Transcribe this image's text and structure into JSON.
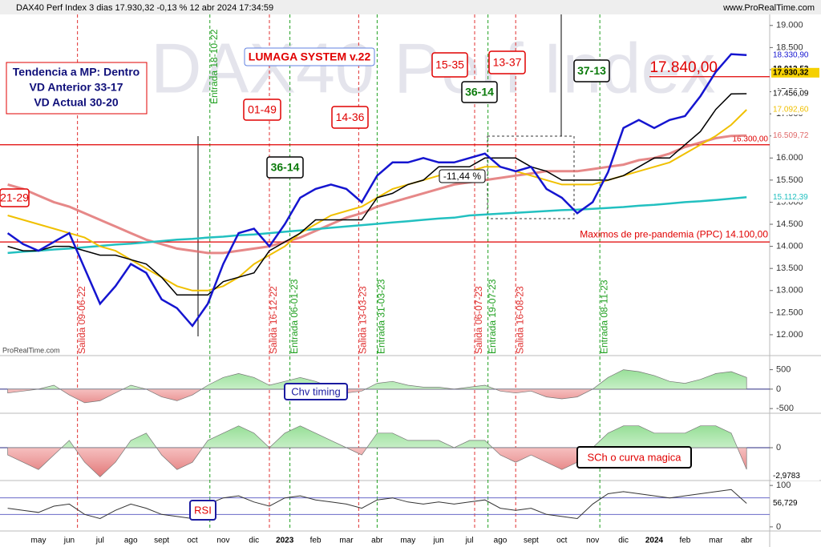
{
  "header": {
    "title": "DAX40 Perf Index 3 dias 17.930,32 -0,13 % 12 abr 2024 17:34:59",
    "site": "www.ProRealTime.com",
    "watermark": "DAX40 Perf Index",
    "credit": "ProRealTime.com"
  },
  "chart_data": [
    {
      "type": "line",
      "categories": [
        null,
        null,
        "may",
        null,
        "jun",
        null,
        "jul",
        null,
        "ago",
        null,
        "sept",
        null,
        "oct",
        null,
        "nov",
        null,
        "dic",
        null,
        "2023",
        null,
        "feb",
        null,
        "mar",
        null,
        "abr",
        null,
        "may",
        null,
        "jun",
        null,
        "jul",
        null,
        "ago",
        null,
        "sept",
        null,
        "oct",
        null,
        "nov",
        null,
        "dic",
        null,
        "2024",
        null,
        "feb",
        null,
        "mar",
        null,
        "abr",
        null
      ],
      "ylim": [
        11600,
        19250
      ],
      "yticks": [
        {
          "value": 19000,
          "label": "19.000"
        },
        {
          "value": 18500,
          "label": "18.500"
        },
        {
          "value": 18000,
          "label": "18.000"
        },
        {
          "value": 17500,
          "label": "17.500"
        },
        {
          "value": 17000,
          "label": "17.000"
        },
        {
          "value": 16500,
          "label": "16.500"
        },
        {
          "value": 16000,
          "label": "16.000"
        },
        {
          "value": 15500,
          "label": "15.500"
        },
        {
          "value": 15000,
          "label": "15.000"
        },
        {
          "value": 14500,
          "label": "14.500"
        },
        {
          "value": 14000,
          "label": "14.000"
        },
        {
          "value": 13500,
          "label": "13.500"
        },
        {
          "value": 13000,
          "label": "13.000"
        },
        {
          "value": 12500,
          "label": "12.500"
        },
        {
          "value": 12000,
          "label": "12.000"
        }
      ],
      "series": [
        {
          "color": "#e06a6a",
          "last_label": "16.509,72",
          "values": [
            15400,
            15300,
            15150,
            15000,
            14900,
            14750,
            14600,
            14450,
            14300,
            14150,
            14050,
            13950,
            13900,
            13850,
            13850,
            13900,
            13950,
            14000,
            14100,
            14200,
            14350,
            14500,
            14650,
            14750,
            14900,
            15000,
            15100,
            15200,
            15300,
            15400,
            15450,
            15500,
            15550,
            15600,
            15650,
            15700,
            15700,
            15700,
            15750,
            15800,
            15850,
            15950,
            16000,
            16100,
            16250,
            16350,
            16450,
            16500,
            16509.72,
            null
          ]
        },
        {
          "color": "#22c0c0",
          "last_label": "15.112,39",
          "values": [
            13850,
            13880,
            13900,
            13930,
            13950,
            13980,
            14010,
            14040,
            14060,
            14090,
            14120,
            14150,
            14170,
            14200,
            14220,
            14250,
            14270,
            14300,
            14330,
            14360,
            14390,
            14420,
            14450,
            14480,
            14510,
            14540,
            14570,
            14600,
            14630,
            14650,
            14700,
            14720,
            14740,
            14760,
            14780,
            14800,
            14820,
            14830,
            14850,
            14870,
            14890,
            14920,
            14940,
            14970,
            15000,
            15020,
            15050,
            15080,
            15112.39,
            null
          ]
        },
        {
          "color": "#f0c000",
          "last_label": "17.092,60",
          "values": [
            14700,
            14600,
            14500,
            14400,
            14300,
            14200,
            14000,
            13900,
            13700,
            13500,
            13300,
            13100,
            13000,
            13000,
            13100,
            13300,
            13600,
            13800,
            14000,
            14300,
            14500,
            14700,
            14800,
            14900,
            15100,
            15300,
            15400,
            15500,
            15600,
            15700,
            15700,
            15800,
            15800,
            15700,
            15600,
            15500,
            15400,
            15400,
            15400,
            15500,
            15600,
            15700,
            15800,
            15900,
            16100,
            16300,
            16500,
            16750,
            17092.6,
            null
          ]
        },
        {
          "color": "#000000",
          "last_label": "17.456,09",
          "values": [
            14000,
            13900,
            13900,
            14000,
            14000,
            13900,
            13800,
            13800,
            13700,
            13600,
            13300,
            12900,
            12900,
            12900,
            13200,
            13300,
            13400,
            13900,
            14100,
            14300,
            14600,
            14600,
            14600,
            14600,
            15100,
            15200,
            15400,
            15500,
            15800,
            15800,
            15800,
            16000,
            16000,
            16000,
            15800,
            15700,
            15500,
            15500,
            15500,
            15500,
            15600,
            15800,
            16000,
            16000,
            16300,
            16600,
            17100,
            17450,
            17456.09,
            null
          ]
        },
        {
          "color": "#1515d0",
          "last_label": "18.330,90",
          "values": [
            14300,
            14050,
            13900,
            14100,
            14300,
            13500,
            12700,
            13100,
            13600,
            13400,
            12800,
            12600,
            12200,
            12700,
            13600,
            14300,
            14400,
            14000,
            14500,
            15100,
            15300,
            15400,
            15300,
            15000,
            15600,
            15900,
            15900,
            16000,
            15900,
            15900,
            16000,
            16100,
            15800,
            15700,
            15800,
            15300,
            15100,
            14750,
            15000,
            15680,
            16680,
            16860,
            16680,
            16860,
            16950,
            17400,
            17950,
            18350,
            18330.9,
            null
          ]
        }
      ],
      "price_labels": [
        {
          "value": 18012.53,
          "label": "18.012,53",
          "color": "#000000"
        },
        {
          "value": 17930.32,
          "label": "17.930,32",
          "color": "#f5d000"
        }
      ],
      "hlines": [
        {
          "value": 16300,
          "label": "16.300,00",
          "color": "#e00000"
        },
        {
          "value": 14100,
          "label": "Maximos de pre-pandemia (PPC) 14.100,00",
          "color": "#e00000"
        },
        {
          "value": 17840,
          "label": "17.840,00",
          "color": "#e00000"
        }
      ],
      "annotations": [
        {
          "text": "Salida 09-06-22",
          "color": "#e03030"
        },
        {
          "text": "Entrada 18-10-22",
          "color": "#20a020"
        },
        {
          "text": "Salida 16-12-22",
          "color": "#e03030"
        },
        {
          "text": "Entrada 06-01-23",
          "color": "#20a020"
        },
        {
          "text": "Salida 13-03-23",
          "color": "#e03030"
        },
        {
          "text": "Entrada 31-03-23",
          "color": "#20a020"
        },
        {
          "text": "Salida 06-07-23",
          "color": "#e03030"
        },
        {
          "text": "Entrada 19-07-23",
          "color": "#20a020"
        },
        {
          "text": "Salida 16-08-23",
          "color": "#e03030"
        },
        {
          "text": "Entrada 08-11-23",
          "color": "#20a020"
        }
      ],
      "boxes": [
        {
          "text": "21-29",
          "color": "#e00000",
          "border": "#e00000"
        },
        {
          "text": "01-49",
          "color": "#e00000",
          "border": "#e00000"
        },
        {
          "text": "14-36",
          "color": "#e00000",
          "border": "#e00000"
        },
        {
          "text": "15-35",
          "color": "#e00000",
          "border": "#e00000"
        },
        {
          "text": "13-37",
          "color": "#e00000",
          "border": "#e00000"
        },
        {
          "text": "36-14",
          "color": "#0a7a0a",
          "border": "#000000"
        },
        {
          "text": "36-14",
          "color": "#0a7a0a",
          "border": "#000000"
        },
        {
          "text": "37-13",
          "color": "#0a7a0a",
          "border": "#000000"
        },
        {
          "text": "LUMAGA SYSTEM v.22",
          "color": "#e00000",
          "border": "#6080e0"
        },
        {
          "text": "-11,44 %",
          "color": "#000000",
          "border": "#000000"
        }
      ],
      "info_box": [
        "Tendencia a MP: Dentro",
        "VD Anterior 33-17",
        "VD Actual 30-20"
      ]
    },
    {
      "type": "area",
      "title": "Chv timing",
      "title_color": "#1a1aa0",
      "title_border": "#1a1aa0",
      "ylim": [
        -600,
        780
      ],
      "yticks": [
        500,
        0,
        -500
      ],
      "values": [
        -100,
        -50,
        0,
        100,
        -150,
        -350,
        -300,
        -100,
        100,
        0,
        -200,
        -300,
        -150,
        100,
        300,
        400,
        300,
        100,
        200,
        300,
        200,
        50,
        -100,
        -50,
        150,
        200,
        100,
        50,
        50,
        0,
        50,
        100,
        -50,
        -100,
        -50,
        -200,
        -250,
        -200,
        0,
        300,
        500,
        450,
        350,
        200,
        150,
        250,
        400,
        450,
        300,
        null
      ]
    },
    {
      "type": "area",
      "title": "SCh o curva magica",
      "title_color": "#e00000",
      "title_border": "#000000",
      "ylim": [
        -4.5,
        4.5
      ],
      "yticks": [
        0
      ],
      "last_label": "-2,9783",
      "values": [
        -1,
        -2,
        -3,
        -1,
        1,
        -2,
        -4,
        -2,
        1,
        2,
        -1,
        -3,
        -2,
        1,
        2,
        3,
        2,
        0,
        2,
        3,
        2,
        1,
        0,
        -1,
        2,
        2,
        1,
        1,
        1,
        0,
        1,
        1,
        -1,
        -2,
        -1,
        -2,
        -3,
        -2,
        0,
        2,
        3,
        3,
        2,
        2,
        2,
        3,
        3,
        2,
        -2.9783,
        null
      ]
    },
    {
      "type": "line",
      "title": "RSI",
      "title_color": "#e00000",
      "title_border": "#1a1aa0",
      "ylim": [
        -8,
        108
      ],
      "yticks": [
        100,
        0
      ],
      "levels": [
        70,
        30
      ],
      "last_label": "56,729",
      "values": [
        45,
        40,
        35,
        50,
        55,
        30,
        20,
        40,
        55,
        45,
        30,
        25,
        20,
        55,
        70,
        75,
        60,
        50,
        70,
        75,
        65,
        60,
        55,
        45,
        65,
        70,
        60,
        55,
        60,
        55,
        60,
        65,
        45,
        40,
        45,
        30,
        25,
        20,
        55,
        80,
        85,
        80,
        75,
        70,
        75,
        80,
        85,
        90,
        56.729,
        null
      ]
    }
  ]
}
